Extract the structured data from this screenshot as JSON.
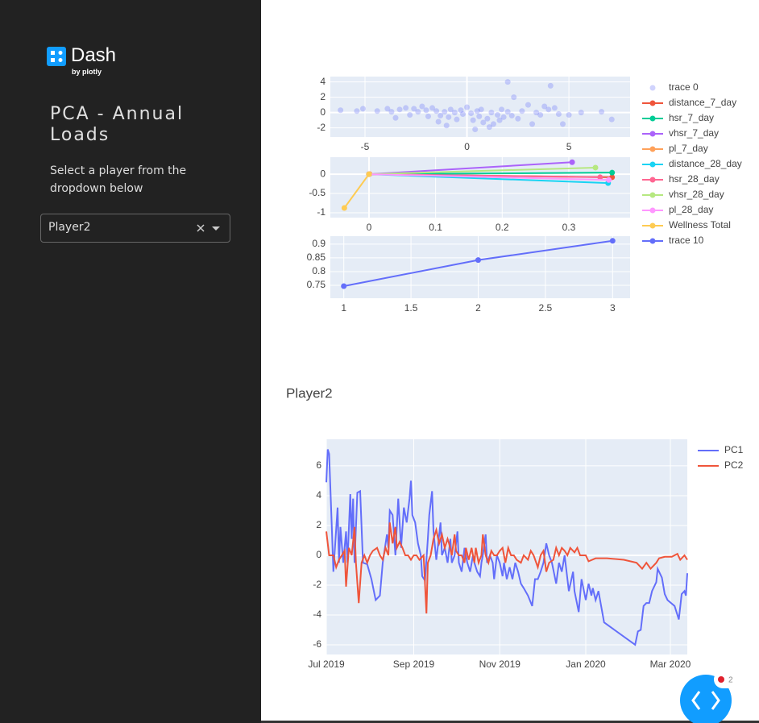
{
  "sidebar": {
    "logo_text": "Dash",
    "logo_sub": "by plotly",
    "title": "PCA - Annual Loads",
    "instruction": "Select a player from the dropdown below",
    "dropdown_value": "Player2"
  },
  "main": {
    "player_title": "Player2"
  },
  "debug_badge": "2",
  "chart_data": [
    {
      "type": "scatter",
      "legend": "right",
      "grid": true,
      "xlim": [
        -6.7,
        8.0
      ],
      "ylim": [
        -3.2,
        4.7
      ],
      "xticks": [
        -5,
        0,
        5
      ],
      "yticks": [
        -2,
        0,
        2,
        4
      ],
      "series": [
        {
          "name": "trace 0",
          "color": "#636efa",
          "x": [
            -6.2,
            -5.4,
            -5.1,
            -4.4,
            -3.9,
            -3.7,
            -3.5,
            -3.3,
            -3.0,
            -2.8,
            -2.6,
            -2.4,
            -2.2,
            -2.0,
            -1.9,
            -1.7,
            -1.5,
            -1.4,
            -1.3,
            -1.1,
            -0.9,
            -0.8,
            -0.6,
            -0.5,
            -0.3,
            -0.2,
            0.0,
            0.2,
            0.3,
            0.5,
            0.6,
            0.7,
            0.8,
            1.0,
            1.1,
            1.2,
            1.3,
            1.5,
            1.6,
            1.7,
            1.8,
            2.0,
            2.0,
            2.2,
            2.5,
            2.7,
            3.0,
            3.2,
            3.4,
            3.6,
            3.8,
            4.0,
            4.1,
            4.3,
            4.5,
            4.7,
            5.0,
            5.6,
            6.6,
            7.1,
            2.3,
            -1.0,
            0.4
          ],
          "values": [
            0.3,
            0.2,
            0.5,
            0.2,
            0.5,
            0.1,
            -0.7,
            0.4,
            0.6,
            -0.3,
            0.5,
            0.1,
            0.8,
            0.3,
            -0.5,
            0.6,
            0.2,
            -1.2,
            -0.4,
            0.1,
            -0.6,
            0.4,
            0.0,
            -0.9,
            0.3,
            -0.2,
            0.7,
            -0.1,
            -1.0,
            0.2,
            -0.5,
            0.4,
            -1.3,
            -0.8,
            -1.9,
            0.0,
            -1.5,
            -0.3,
            -1.0,
            0.4,
            -0.6,
            4.0,
            0.1,
            -0.4,
            -0.8,
            0.2,
            1.0,
            -1.5,
            0.0,
            -0.3,
            0.8,
            0.4,
            3.5,
            0.6,
            -0.2,
            -1.5,
            -0.3,
            0.0,
            0.1,
            -0.9,
            2.0,
            -1.7,
            -2.2
          ]
        }
      ]
    },
    {
      "type": "line",
      "markers": true,
      "grid": true,
      "xlim": [
        -0.058,
        0.392
      ],
      "ylim": [
        -1.125,
        0.44
      ],
      "xticks": [
        0,
        0.1,
        0.2,
        0.3
      ],
      "yticks": [
        -1,
        -0.5,
        0
      ],
      "series": [
        {
          "name": "distance_7_day",
          "color": "#EF553B",
          "x": [
            0,
            0.365
          ],
          "values": [
            0,
            -0.08
          ]
        },
        {
          "name": "hsr_7_day",
          "color": "#00cc96",
          "x": [
            0,
            0.365
          ],
          "values": [
            0,
            0.04
          ]
        },
        {
          "name": "vhsr_7_day",
          "color": "#ab63fa",
          "x": [
            0,
            0.305
          ],
          "values": [
            0,
            0.31
          ]
        },
        {
          "name": "pl_7_day",
          "color": "#FFA15A",
          "x": [
            0,
            0.001
          ],
          "values": [
            0,
            0.005
          ]
        },
        {
          "name": "distance_28_day",
          "color": "#19d3f3",
          "x": [
            0,
            0.359
          ],
          "values": [
            0,
            -0.23
          ]
        },
        {
          "name": "hsr_28_day",
          "color": "#FF6692",
          "x": [
            0,
            0.347
          ],
          "values": [
            0,
            -0.08
          ]
        },
        {
          "name": "vhsr_28_day",
          "color": "#B6E880",
          "x": [
            0,
            0.34
          ],
          "values": [
            0,
            0.17
          ]
        },
        {
          "name": "pl_28_day",
          "color": "#FF97FF",
          "x": [
            0,
            0.36
          ],
          "values": [
            0,
            -0.15
          ]
        },
        {
          "name": "Wellness Total",
          "color": "#FECB52",
          "x": [
            0,
            -0.037
          ],
          "values": [
            0,
            -0.875
          ]
        }
      ]
    },
    {
      "type": "line",
      "markers": true,
      "grid": true,
      "xlim": [
        0.9,
        3.13
      ],
      "ylim": [
        0.703,
        0.929
      ],
      "xticks": [
        1,
        1.5,
        2,
        2.5,
        3
      ],
      "yticks": [
        0.75,
        0.8,
        0.85,
        0.9
      ],
      "series": [
        {
          "name": "trace 10",
          "color": "#636efa",
          "x": [
            1,
            2,
            3
          ],
          "values": [
            0.747,
            0.842,
            0.912
          ]
        }
      ]
    },
    {
      "type": "line",
      "legend": "right",
      "grid": true,
      "xlim": [
        "2019-07-01",
        "2020-03-13"
      ],
      "ylim": [
        -6.65,
        7.78
      ],
      "xticks": [
        {
          "value": "2019-07-01",
          "label": "Jul 2019"
        },
        {
          "value": "2019-09-01",
          "label": "Sep 2019"
        },
        {
          "value": "2019-11-01",
          "label": "Nov 2019"
        },
        {
          "value": "2020-01-01",
          "label": "Jan 2020"
        },
        {
          "value": "2020-03-01",
          "label": "Mar 2020"
        }
      ],
      "yticks": [
        -6,
        -4,
        -2,
        0,
        2,
        4,
        6
      ],
      "series": [
        {
          "name": "PC1",
          "color": "#636efa",
          "x": [
            "2019-07-01",
            "2019-07-02",
            "2019-07-03",
            "2019-07-05",
            "2019-07-06",
            "2019-07-09",
            "2019-07-10",
            "2019-07-11",
            "2019-07-13",
            "2019-07-15",
            "2019-07-16",
            "2019-07-18",
            "2019-07-19",
            "2019-07-20",
            "2019-07-21",
            "2019-07-23",
            "2019-07-25",
            "2019-07-27",
            "2019-07-30",
            "2019-08-02",
            "2019-08-05",
            "2019-08-08",
            "2019-08-10",
            "2019-08-13",
            "2019-08-14",
            "2019-08-15",
            "2019-08-17",
            "2019-08-18",
            "2019-08-19",
            "2019-08-21",
            "2019-08-22",
            "2019-08-23",
            "2019-08-25",
            "2019-08-27",
            "2019-08-29",
            "2019-08-30",
            "2019-08-31",
            "2019-09-02",
            "2019-09-04",
            "2019-09-06",
            "2019-09-07",
            "2019-09-09",
            "2019-09-11",
            "2019-09-12",
            "2019-09-14",
            "2019-09-15",
            "2019-09-17",
            "2019-09-18",
            "2019-09-20",
            "2019-09-21",
            "2019-09-23",
            "2019-09-25",
            "2019-09-27",
            "2019-09-28",
            "2019-09-30",
            "2019-10-02",
            "2019-10-03",
            "2019-10-05",
            "2019-10-06",
            "2019-10-07",
            "2019-10-09",
            "2019-10-11",
            "2019-10-13",
            "2019-10-14",
            "2019-10-16",
            "2019-10-18",
            "2019-10-19",
            "2019-10-20",
            "2019-10-22",
            "2019-10-23",
            "2019-10-25",
            "2019-10-27",
            "2019-10-28",
            "2019-10-30",
            "2019-11-01",
            "2019-11-03",
            "2019-11-04",
            "2019-11-06",
            "2019-11-08",
            "2019-11-10",
            "2019-11-12",
            "2019-11-14",
            "2019-11-16",
            "2019-11-18",
            "2019-11-21",
            "2019-11-24",
            "2019-11-26",
            "2019-11-28",
            "2019-11-30",
            "2019-12-02",
            "2019-12-04",
            "2019-12-06",
            "2019-12-08",
            "2019-12-11",
            "2019-12-13",
            "2019-12-15",
            "2019-12-17",
            "2019-12-19",
            "2019-12-20",
            "2019-12-23",
            "2019-12-24",
            "2019-12-27",
            "2019-12-29",
            "2020-01-01",
            "2020-01-03",
            "2020-01-05",
            "2020-01-06",
            "2020-01-08",
            "2020-01-10",
            "2020-01-14",
            "2020-02-05",
            "2020-02-07",
            "2020-02-09",
            "2020-02-11",
            "2020-02-13",
            "2020-02-15",
            "2020-02-17",
            "2020-02-20",
            "2020-02-21",
            "2020-02-24",
            "2020-02-26",
            "2020-02-28",
            "2020-03-04",
            "2020-03-07",
            "2020-03-09",
            "2020-03-11",
            "2020-03-12",
            "2020-03-13"
          ],
          "values": [
            4.9,
            7.1,
            6.8,
            1.6,
            -1.1,
            3.2,
            -0.5,
            1.9,
            -0.5,
            1.6,
            -0.5,
            4.1,
            1.1,
            3.8,
            -0.5,
            4.2,
            4.3,
            -0.5,
            -0.6,
            -1.6,
            -3.0,
            -2.7,
            -0.5,
            1.4,
            0.5,
            3.0,
            2.7,
            1.4,
            0.0,
            3.8,
            2.2,
            0.5,
            3.2,
            2.2,
            3.8,
            5.0,
            2.7,
            2.2,
            0.8,
            0.0,
            -1.4,
            -1.7,
            1.1,
            2.7,
            4.3,
            1.6,
            -0.3,
            0.5,
            2.2,
            0.0,
            0.5,
            -0.5,
            1.1,
            -0.5,
            0.0,
            1.6,
            -0.5,
            -1.1,
            -0.3,
            0.5,
            -0.5,
            -1.1,
            0.0,
            -0.5,
            -1.1,
            -1.4,
            -0.5,
            0.0,
            1.4,
            -0.5,
            0.0,
            -0.5,
            -1.6,
            0.0,
            -0.5,
            -1.4,
            -0.5,
            -1.6,
            -0.8,
            -1.6,
            -0.5,
            -1.1,
            -1.9,
            -2.2,
            -2.7,
            -3.4,
            -1.6,
            -1.6,
            -1.1,
            -0.5,
            0.8,
            0.0,
            -0.5,
            -1.9,
            -0.5,
            -1.1,
            0.0,
            -1.6,
            -2.4,
            -1.1,
            -2.4,
            -3.8,
            -1.6,
            -3.0,
            -1.9,
            -2.7,
            -2.2,
            -3.0,
            -2.4,
            -4.5,
            -6.0,
            -5.1,
            -5.0,
            -3.4,
            -3.2,
            -3.2,
            -2.4,
            -1.8,
            -0.9,
            -1.5,
            -2.6,
            -3.0,
            -3.4,
            -4.3,
            -2.6,
            -2.4,
            -2.7,
            -1.2
          ]
        },
        {
          "name": "PC2",
          "color": "#EF553B",
          "x": [
            "2019-07-01",
            "2019-07-03",
            "2019-07-06",
            "2019-07-08",
            "2019-07-10",
            "2019-07-12",
            "2019-07-14",
            "2019-07-15",
            "2019-07-17",
            "2019-07-19",
            "2019-07-21",
            "2019-07-22",
            "2019-07-24",
            "2019-07-26",
            "2019-07-28",
            "2019-07-30",
            "2019-08-01",
            "2019-08-03",
            "2019-08-06",
            "2019-08-08",
            "2019-08-10",
            "2019-08-12",
            "2019-08-14",
            "2019-08-15",
            "2019-08-17",
            "2019-08-19",
            "2019-08-20",
            "2019-08-22",
            "2019-08-24",
            "2019-08-26",
            "2019-08-28",
            "2019-08-30",
            "2019-09-01",
            "2019-09-03",
            "2019-09-05",
            "2019-09-08",
            "2019-09-10",
            "2019-09-11",
            "2019-09-13",
            "2019-09-15",
            "2019-09-17",
            "2019-09-19",
            "2019-09-21",
            "2019-09-23",
            "2019-09-25",
            "2019-09-26",
            "2019-09-28",
            "2019-09-30",
            "2019-10-01",
            "2019-10-03",
            "2019-10-05",
            "2019-10-07",
            "2019-10-08",
            "2019-10-10",
            "2019-10-12",
            "2019-10-14",
            "2019-10-15",
            "2019-10-17",
            "2019-10-19",
            "2019-10-20",
            "2019-10-22",
            "2019-10-24",
            "2019-10-26",
            "2019-10-28",
            "2019-10-30",
            "2019-11-01",
            "2019-11-03",
            "2019-11-05",
            "2019-11-07",
            "2019-11-09",
            "2019-11-11",
            "2019-11-13",
            "2019-11-16",
            "2019-11-18",
            "2019-11-21",
            "2019-11-23",
            "2019-11-25",
            "2019-11-28",
            "2019-11-30",
            "2019-12-02",
            "2019-12-04",
            "2019-12-06",
            "2019-12-09",
            "2019-12-11",
            "2019-12-13",
            "2019-12-15",
            "2019-12-17",
            "2019-12-19",
            "2019-12-21",
            "2019-12-24",
            "2019-12-26",
            "2019-12-28",
            "2019-12-30",
            "2020-01-01",
            "2020-01-03",
            "2020-01-08",
            "2020-01-16",
            "2020-01-28",
            "2020-02-06",
            "2020-02-10",
            "2020-02-13",
            "2020-02-16",
            "2020-02-18",
            "2020-02-20",
            "2020-02-22",
            "2020-02-26",
            "2020-03-02",
            "2020-03-06",
            "2020-03-08",
            "2020-03-11",
            "2020-03-13"
          ],
          "values": [
            1.6,
            0.0,
            0.0,
            -0.8,
            -0.3,
            0.0,
            0.3,
            -2.1,
            0.5,
            0.0,
            1.9,
            -0.5,
            -3.2,
            -0.5,
            0.0,
            -0.5,
            0.0,
            0.3,
            0.5,
            0.0,
            -0.3,
            0.5,
            0.0,
            2.2,
            0.8,
            1.9,
            0.5,
            0.9,
            0.5,
            0.0,
            0.0,
            -0.3,
            0.0,
            0.0,
            -0.3,
            0.0,
            -3.9,
            -0.5,
            0.0,
            1.1,
            1.7,
            0.8,
            1.4,
            0.5,
            1.1,
            0.8,
            0.0,
            1.4,
            0.3,
            0.0,
            0.0,
            -0.5,
            0.5,
            -0.3,
            0.5,
            -0.5,
            0.5,
            -0.5,
            0.0,
            1.4,
            0.0,
            -0.5,
            0.3,
            0.0,
            0.0,
            0.3,
            0.5,
            -0.5,
            0.5,
            0.0,
            0.0,
            -0.3,
            -0.5,
            0.0,
            -0.3,
            0.3,
            0.0,
            -0.8,
            0.0,
            0.3,
            -1.1,
            -0.5,
            -0.3,
            0.5,
            0.0,
            0.5,
            0.3,
            0.0,
            0.5,
            0.2,
            0.5,
            0.0,
            0.0,
            0.0,
            -0.4,
            -0.2,
            -0.2,
            -0.3,
            -0.5,
            -0.9,
            -0.5,
            -0.9,
            -0.7,
            -0.5,
            -0.2,
            -0.1,
            -0.1,
            0.1,
            -0.3,
            0.0,
            -0.3
          ]
        }
      ]
    }
  ]
}
